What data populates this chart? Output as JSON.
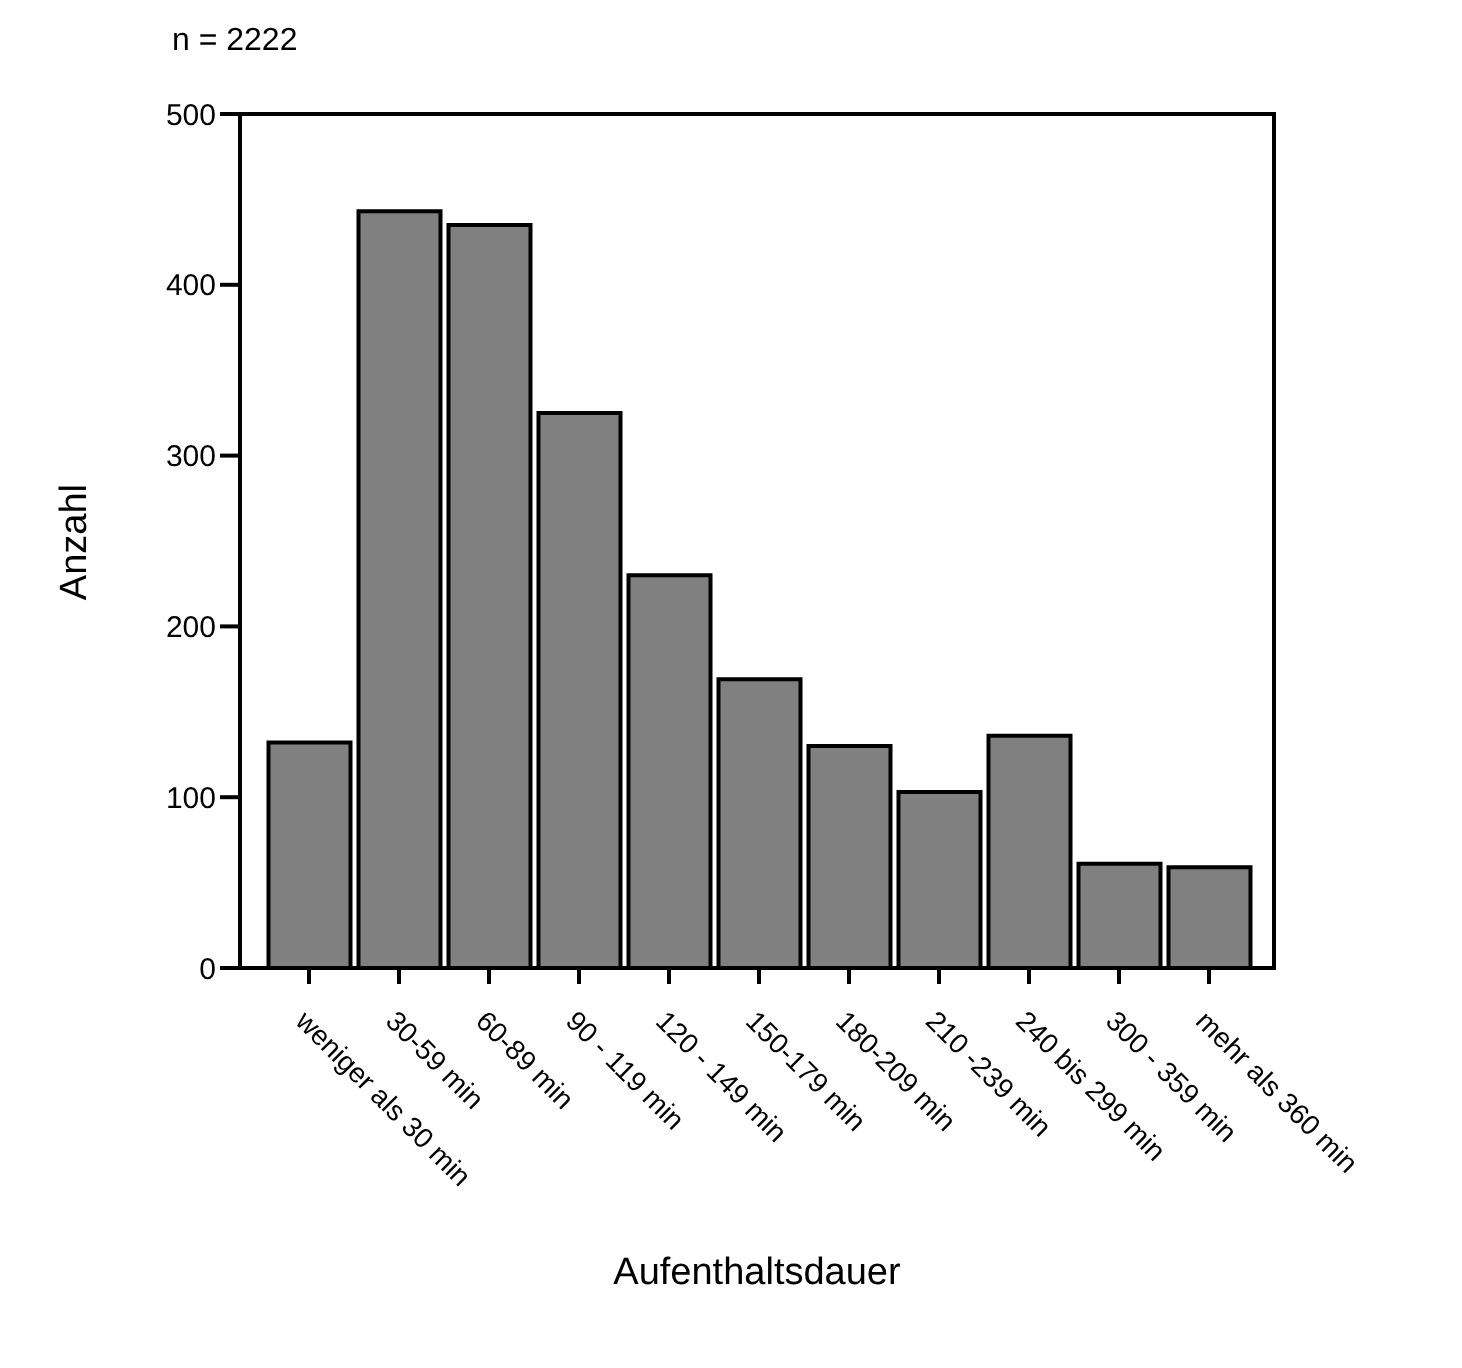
{
  "chart_data": {
    "type": "bar",
    "title": "n = 2222",
    "xlabel": "Aufenthaltsdauer",
    "ylabel": "Anzahl",
    "categories": [
      "weniger als 30 min",
      "30-59 min",
      "60-89 min",
      "90 - 119 min",
      "120 - 149 min",
      "150-179 min",
      "180-209 min",
      "210 -239 min",
      "240 bis 299 min",
      "300 - 359 min",
      "mehr als 360 min"
    ],
    "values": [
      132,
      443,
      435,
      325,
      230,
      169,
      130,
      103,
      136,
      61,
      59
    ],
    "color": "#808080",
    "ylim": [
      0,
      500
    ],
    "yticks": [
      0,
      100,
      200,
      300,
      400,
      500
    ],
    "grid": false
  }
}
